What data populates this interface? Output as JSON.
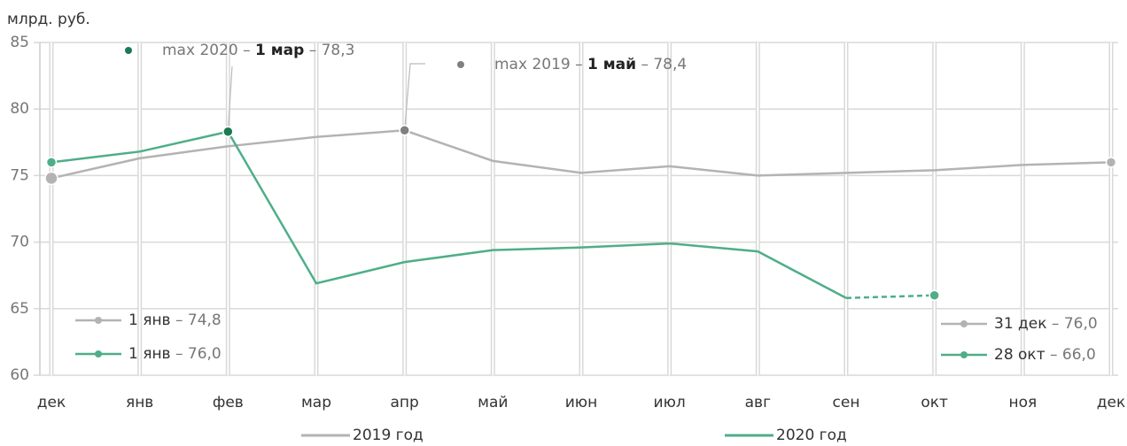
{
  "chart_data": {
    "type": "line",
    "y_axis_label": "млрд. руб.",
    "categories": [
      "дек",
      "янв",
      "фев",
      "мар",
      "апр",
      "май",
      "июн",
      "июл",
      "авг",
      "сен",
      "окт",
      "ноя",
      "дек"
    ],
    "ylim": [
      60,
      85
    ],
    "yticks": [
      60,
      65,
      70,
      75,
      80,
      85
    ],
    "grid": true,
    "series": [
      {
        "name": "2019 год",
        "color": "#b3b3b3",
        "values": [
          74.8,
          76.3,
          77.2,
          77.9,
          78.4,
          76.1,
          75.2,
          75.7,
          75.0,
          75.2,
          75.4,
          75.8,
          76.0
        ]
      },
      {
        "name": "2020 год",
        "color": "#4fae88",
        "values": [
          76.0,
          76.8,
          78.3,
          66.9,
          68.5,
          69.4,
          69.6,
          69.9,
          69.3,
          65.8,
          66.0,
          null,
          null
        ],
        "dashed_last_segment": true
      }
    ],
    "annotations": [
      {
        "parts": [
          "max 2020 – ",
          "1 мар",
          " – 78,3"
        ],
        "series": 1,
        "index": 2,
        "color": "#1c7a52"
      },
      {
        "parts": [
          "max 2019 – ",
          "1 май",
          " – 78,4"
        ],
        "series": 0,
        "index": 4,
        "color": "#808080"
      }
    ],
    "endpoint_labels": [
      {
        "parts": [
          "1 янв",
          " – 74,8"
        ],
        "series": 0,
        "index": 0
      },
      {
        "parts": [
          "1 янв",
          " – 76,0"
        ],
        "series": 1,
        "index": 0
      },
      {
        "parts": [
          "31 дек",
          " – 76,0"
        ],
        "series": 0,
        "index": 12
      },
      {
        "parts": [
          "28 окт",
          " – 66,0"
        ],
        "series": 1,
        "index": 10
      }
    ]
  }
}
